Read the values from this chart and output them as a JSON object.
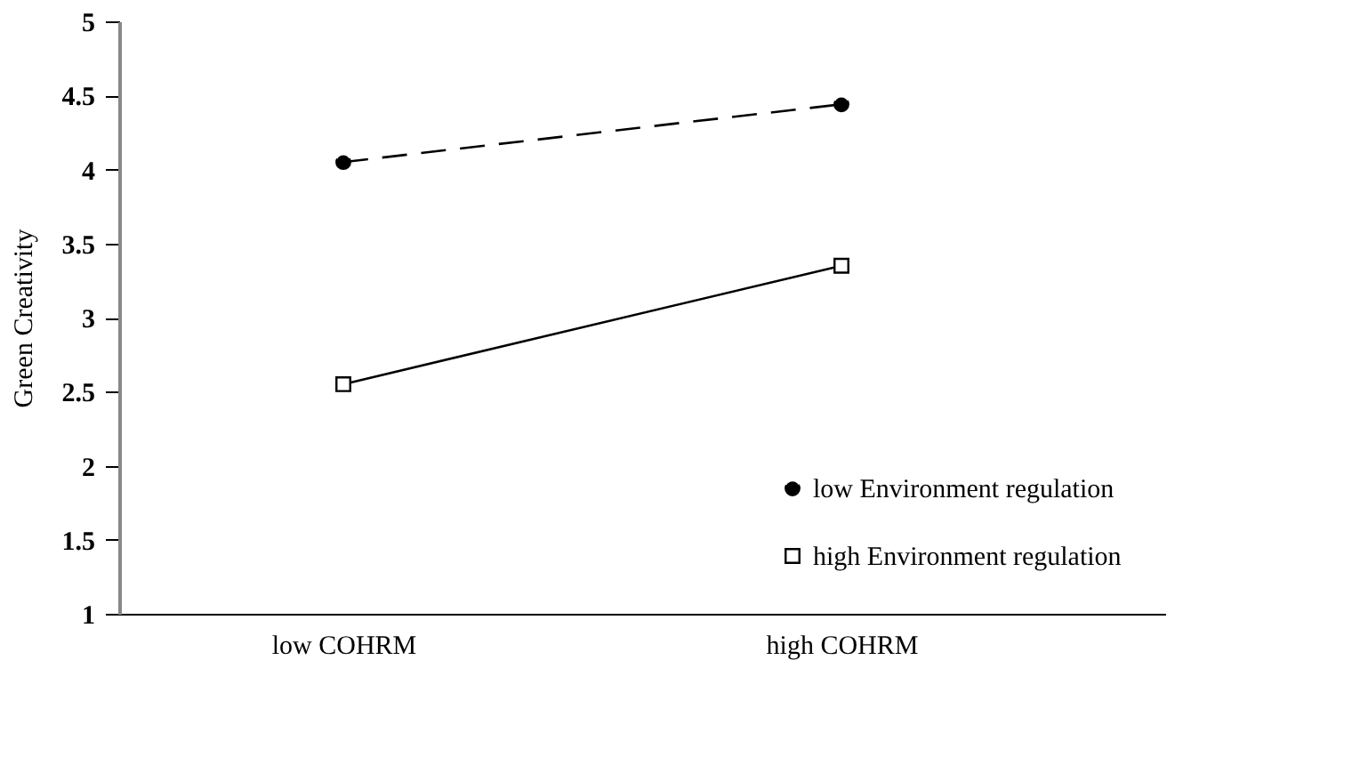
{
  "chart_data": {
    "type": "line",
    "ylabel": "Green    Creativity",
    "categories": [
      "low COHRM",
      "high COHRM"
    ],
    "series": [
      {
        "name": "low Environment regulation",
        "color": "#000000",
        "values": [
          4.05,
          4.44
        ],
        "line_style": "dashed",
        "marker": "circle"
      },
      {
        "name": "high Environment regulation",
        "color": "#000000",
        "values": [
          2.55,
          3.35
        ],
        "line_style": "solid",
        "marker": "square"
      }
    ],
    "ylim": [
      1,
      5
    ],
    "yticks": [
      1,
      1.5,
      2,
      2.5,
      3,
      3.5,
      4,
      4.5,
      5
    ],
    "grid": false,
    "legend": "bottom right"
  }
}
